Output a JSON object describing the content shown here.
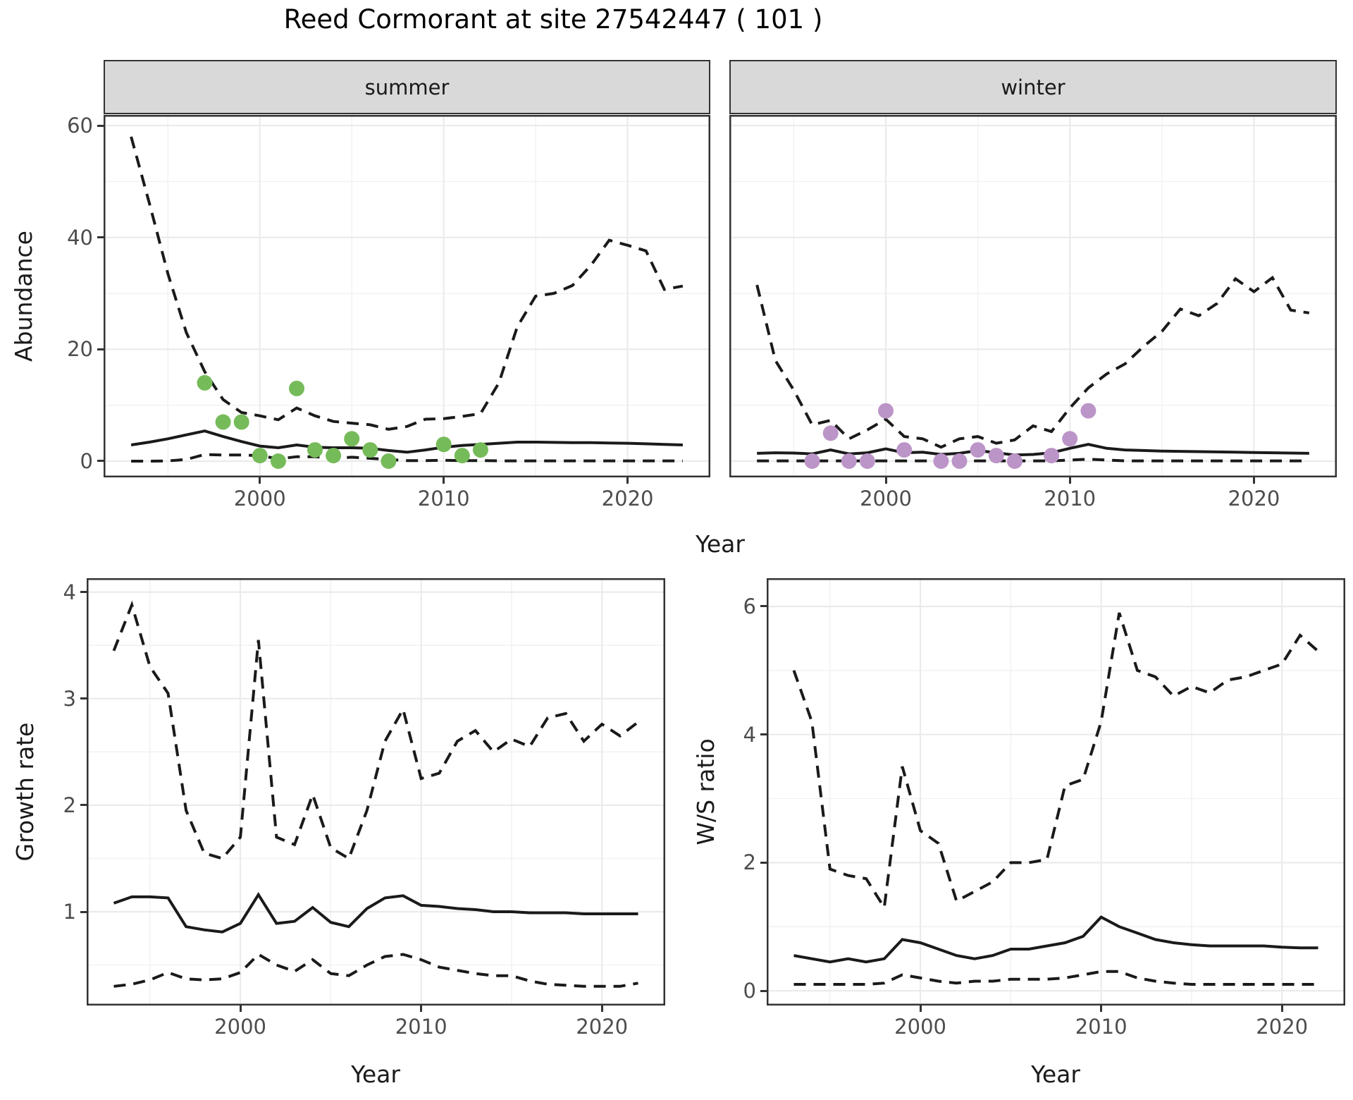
{
  "title": "Reed Cormorant at site 27542447 ( 101 )",
  "axis_titles": {
    "abundance": "Abundance",
    "year_top": "Year",
    "growth_rate": "Growth rate",
    "year_growth": "Year",
    "ws_ratio": "W/S ratio",
    "year_ws": "Year"
  },
  "colors": {
    "summer_points": "#76BB5A",
    "winter_points": "#BC95C8",
    "line": "#1A1A1A",
    "grid_major": "#EBEBEB",
    "grid_minor": "#F1F1F1",
    "strip_bg": "#D9D9D9",
    "panel_border": "#333333",
    "tick_text": "#4D4D4D"
  },
  "chart_data": [
    {
      "type": "line",
      "facet": "summer",
      "ylabel": "Abundance",
      "xlabel": "Year",
      "xlim": [
        1991.5,
        2024.5
      ],
      "ylim": [
        -2.9,
        61.9
      ],
      "x_major": [
        2000,
        2010,
        2020
      ],
      "x_minor": [
        1995,
        2005,
        2015
      ],
      "y_major": [
        0,
        20,
        40,
        60
      ],
      "y_minor": [
        10,
        30,
        50
      ],
      "point_color": "#76BB5A",
      "series": [
        {
          "name": "upper_ci",
          "style": "dashed",
          "x": [
            1993,
            1994,
            1995,
            1996,
            1997,
            1998,
            1999,
            2000,
            2001,
            2002,
            2003,
            2004,
            2005,
            2006,
            2007,
            2008,
            2009,
            2010,
            2011,
            2012,
            2013,
            2014,
            2015,
            2016,
            2017,
            2018,
            2019,
            2020,
            2021,
            2022,
            2023
          ],
          "y": [
            58,
            46,
            33.5,
            23,
            16,
            11,
            8.7,
            8.1,
            7.4,
            9.5,
            8.1,
            7.1,
            6.8,
            6.5,
            5.7,
            6.2,
            7.5,
            7.6,
            8,
            8.5,
            14,
            24,
            29.5,
            30,
            31.4,
            35,
            39.5,
            38.6,
            37.6,
            30.7,
            31.3
          ]
        },
        {
          "name": "median",
          "style": "solid",
          "x": [
            1993,
            1994,
            1995,
            1996,
            1997,
            1998,
            1999,
            2000,
            2001,
            2002,
            2003,
            2004,
            2005,
            2006,
            2007,
            2008,
            2009,
            2010,
            2011,
            2012,
            2013,
            2014,
            2015,
            2016,
            2017,
            2018,
            2019,
            2020,
            2021,
            2022,
            2023
          ],
          "y": [
            2.9,
            3.4,
            4,
            4.7,
            5.4,
            4.4,
            3.5,
            2.7,
            2.4,
            2.9,
            2.5,
            2.4,
            2.4,
            2.3,
            1.9,
            1.6,
            2,
            2.5,
            2.8,
            3,
            3.2,
            3.4,
            3.4,
            3.35,
            3.3,
            3.3,
            3.25,
            3.2,
            3.1,
            3,
            2.9
          ]
        },
        {
          "name": "lower_ci",
          "style": "dashed",
          "x": [
            1993,
            1994,
            1995,
            1996,
            1997,
            1998,
            1999,
            2000,
            2001,
            2002,
            2003,
            2004,
            2005,
            2006,
            2007,
            2008,
            2009,
            2010,
            2011,
            2012,
            2013,
            2014,
            2015,
            2016,
            2017,
            2018,
            2019,
            2020,
            2021,
            2022,
            2023
          ],
          "y": [
            0,
            0,
            0.05,
            0.3,
            1.2,
            1.1,
            1.1,
            1,
            0.4,
            0.8,
            0.8,
            0.5,
            0.7,
            0.5,
            0.3,
            0.1,
            0.1,
            0.15,
            0.1,
            0.1,
            0.05,
            0.05,
            0.05,
            0.05,
            0.05,
            0.05,
            0.05,
            0.05,
            0.05,
            0.05,
            0.05
          ]
        }
      ],
      "points": {
        "x": [
          1997,
          1998,
          1999,
          2000,
          2001,
          2002,
          2003,
          2004,
          2005,
          2006,
          2007,
          2010,
          2011,
          2012
        ],
        "y": [
          14,
          7,
          7,
          1,
          0,
          13,
          2,
          1,
          4,
          2,
          0,
          3,
          1,
          2
        ]
      }
    },
    {
      "type": "line",
      "facet": "winter",
      "ylabel": "Abundance",
      "xlabel": "Year",
      "xlim": [
        1991.5,
        2024.5
      ],
      "ylim": [
        -2.9,
        61.9
      ],
      "x_major": [
        2000,
        2010,
        2020
      ],
      "x_minor": [
        1995,
        2005,
        2015
      ],
      "y_major": [
        0,
        20,
        40,
        60
      ],
      "y_minor": [
        10,
        30,
        50
      ],
      "point_color": "#BC95C8",
      "series": [
        {
          "name": "upper_ci",
          "style": "dashed",
          "x": [
            1993,
            1994,
            1995,
            1996,
            1997,
            1998,
            1999,
            2000,
            2001,
            2002,
            2003,
            2004,
            2005,
            2006,
            2007,
            2008,
            2009,
            2010,
            2011,
            2012,
            2013,
            2014,
            2015,
            2016,
            2017,
            2018,
            2019,
            2020,
            2021,
            2022,
            2023
          ],
          "y": [
            31.5,
            18,
            12.7,
            6.5,
            7.3,
            4,
            5.6,
            7.5,
            4.4,
            4,
            2.5,
            4,
            4.4,
            3.2,
            3.8,
            6.3,
            5.3,
            9.5,
            13.1,
            15.6,
            17.4,
            20.5,
            23.2,
            27.2,
            26,
            28.2,
            32.6,
            30.3,
            32.8,
            27,
            26.5
          ]
        },
        {
          "name": "median",
          "style": "solid",
          "x": [
            1993,
            1994,
            1995,
            1996,
            1997,
            1998,
            1999,
            2000,
            2001,
            2002,
            2003,
            2004,
            2005,
            2006,
            2007,
            2008,
            2009,
            2010,
            2011,
            2012,
            2013,
            2014,
            2015,
            2016,
            2017,
            2018,
            2019,
            2020,
            2021,
            2022,
            2023
          ],
          "y": [
            1.4,
            1.5,
            1.45,
            1.3,
            2,
            1.3,
            1.5,
            2.2,
            1.5,
            1.6,
            1.2,
            1.4,
            1.9,
            1.5,
            1.1,
            1.2,
            1.5,
            2.3,
            3,
            2.3,
            2,
            1.9,
            1.8,
            1.75,
            1.7,
            1.65,
            1.6,
            1.55,
            1.5,
            1.45,
            1.4
          ]
        },
        {
          "name": "lower_ci",
          "style": "dashed",
          "x": [
            1993,
            1994,
            1995,
            1996,
            1997,
            1998,
            1999,
            2000,
            2001,
            2002,
            2003,
            2004,
            2005,
            2006,
            2007,
            2008,
            2009,
            2010,
            2011,
            2012,
            2013,
            2014,
            2015,
            2016,
            2017,
            2018,
            2019,
            2020,
            2021,
            2022,
            2023
          ],
          "y": [
            0.05,
            0.05,
            0.05,
            0.05,
            0.05,
            0.05,
            0.05,
            0.05,
            0.05,
            0.05,
            0.05,
            0.05,
            0.05,
            0.05,
            0.05,
            0.05,
            0.05,
            0.2,
            0.35,
            0.2,
            0.05,
            0.05,
            0.05,
            0.05,
            0.05,
            0.05,
            0.05,
            0.05,
            0.05,
            0.05,
            0.05
          ]
        }
      ],
      "points": {
        "x": [
          1996,
          1997,
          1998,
          1999,
          2000,
          2001,
          2003,
          2004,
          2005,
          2006,
          2007,
          2009,
          2010,
          2011
        ],
        "y": [
          0,
          5,
          0,
          0,
          9,
          2,
          0,
          0,
          2,
          1,
          0,
          1,
          4,
          9
        ]
      }
    },
    {
      "type": "line",
      "ylabel": "Growth rate",
      "xlabel": "Year",
      "xlim": [
        1991.5,
        2023.5
      ],
      "ylim": [
        0.12,
        4.13
      ],
      "x_major": [
        2000,
        2010,
        2020
      ],
      "x_minor": [
        1995,
        2005,
        2015
      ],
      "y_major": [
        1,
        2,
        3,
        4
      ],
      "y_minor": [
        0.5,
        1.5,
        2.5,
        3.5
      ],
      "series": [
        {
          "name": "upper_ci",
          "style": "dashed",
          "x": [
            1993,
            1994,
            1995,
            1996,
            1997,
            1998,
            1999,
            2000,
            2001,
            2002,
            2003,
            2004,
            2005,
            2006,
            2007,
            2008,
            2009,
            2010,
            2011,
            2012,
            2013,
            2014,
            2015,
            2016,
            2017,
            2018,
            2019,
            2020,
            2021,
            2022
          ],
          "y": [
            3.45,
            3.88,
            3.3,
            3.05,
            1.95,
            1.55,
            1.5,
            1.7,
            3.55,
            1.7,
            1.63,
            2.1,
            1.6,
            1.5,
            1.95,
            2.6,
            2.9,
            2.25,
            2.3,
            2.6,
            2.7,
            2.5,
            2.62,
            2.55,
            2.82,
            2.86,
            2.6,
            2.76,
            2.65,
            2.78
          ]
        },
        {
          "name": "median",
          "style": "solid",
          "x": [
            1993,
            1994,
            1995,
            1996,
            1997,
            1998,
            1999,
            2000,
            2001,
            2002,
            2003,
            2004,
            2005,
            2006,
            2007,
            2008,
            2009,
            2010,
            2011,
            2012,
            2013,
            2014,
            2015,
            2016,
            2017,
            2018,
            2019,
            2020,
            2021,
            2022
          ],
          "y": [
            1.08,
            1.14,
            1.14,
            1.13,
            0.86,
            0.83,
            0.81,
            0.89,
            1.16,
            0.89,
            0.91,
            1.04,
            0.9,
            0.86,
            1.03,
            1.13,
            1.15,
            1.06,
            1.05,
            1.03,
            1.02,
            1,
            1,
            0.99,
            0.99,
            0.99,
            0.98,
            0.98,
            0.98,
            0.98
          ]
        },
        {
          "name": "lower_ci",
          "style": "dashed",
          "x": [
            1993,
            1994,
            1995,
            1996,
            1997,
            1998,
            1999,
            2000,
            2001,
            2002,
            2003,
            2004,
            2005,
            2006,
            2007,
            2008,
            2009,
            2010,
            2011,
            2012,
            2013,
            2014,
            2015,
            2016,
            2017,
            2018,
            2019,
            2020,
            2021,
            2022
          ],
          "y": [
            0.3,
            0.32,
            0.36,
            0.43,
            0.37,
            0.36,
            0.37,
            0.43,
            0.6,
            0.5,
            0.44,
            0.55,
            0.42,
            0.4,
            0.5,
            0.58,
            0.6,
            0.55,
            0.48,
            0.45,
            0.42,
            0.4,
            0.4,
            0.35,
            0.32,
            0.31,
            0.3,
            0.3,
            0.3,
            0.33
          ]
        }
      ]
    },
    {
      "type": "line",
      "ylabel": "W/S ratio",
      "xlabel": "Year",
      "xlim": [
        1991.5,
        2023.5
      ],
      "ylim": [
        -0.23,
        6.44
      ],
      "x_major": [
        2000,
        2010,
        2020
      ],
      "x_minor": [
        1995,
        2005,
        2015
      ],
      "y_major": [
        0,
        2,
        4,
        6
      ],
      "y_minor": [
        1,
        3,
        5
      ],
      "series": [
        {
          "name": "upper_ci",
          "style": "dashed",
          "x": [
            1993,
            1994,
            1995,
            1996,
            1997,
            1998,
            1999,
            2000,
            2001,
            2002,
            2003,
            2004,
            2005,
            2006,
            2007,
            2008,
            2009,
            2010,
            2011,
            2012,
            2013,
            2014,
            2015,
            2016,
            2017,
            2018,
            2019,
            2020,
            2021,
            2022
          ],
          "y": [
            5,
            4.2,
            1.9,
            1.8,
            1.75,
            1.3,
            3.5,
            2.5,
            2.3,
            1.4,
            1.55,
            1.7,
            2,
            2,
            2.05,
            3.2,
            3.3,
            4.2,
            5.9,
            5,
            4.9,
            4.6,
            4.75,
            4.65,
            4.85,
            4.9,
            5,
            5.1,
            5.55,
            5.3
          ]
        },
        {
          "name": "median",
          "style": "solid",
          "x": [
            1993,
            1994,
            1995,
            1996,
            1997,
            1998,
            1999,
            2000,
            2001,
            2002,
            2003,
            2004,
            2005,
            2006,
            2007,
            2008,
            2009,
            2010,
            2011,
            2012,
            2013,
            2014,
            2015,
            2016,
            2017,
            2018,
            2019,
            2020,
            2021,
            2022
          ],
          "y": [
            0.55,
            0.5,
            0.45,
            0.5,
            0.45,
            0.5,
            0.8,
            0.75,
            0.65,
            0.55,
            0.5,
            0.55,
            0.65,
            0.65,
            0.7,
            0.75,
            0.85,
            1.15,
            1,
            0.9,
            0.8,
            0.75,
            0.72,
            0.7,
            0.7,
            0.7,
            0.7,
            0.68,
            0.67,
            0.67
          ]
        },
        {
          "name": "lower_ci",
          "style": "dashed",
          "x": [
            1993,
            1994,
            1995,
            1996,
            1997,
            1998,
            1999,
            2000,
            2001,
            2002,
            2003,
            2004,
            2005,
            2006,
            2007,
            2008,
            2009,
            2010,
            2011,
            2012,
            2013,
            2014,
            2015,
            2016,
            2017,
            2018,
            2019,
            2020,
            2021,
            2022
          ],
          "y": [
            0.1,
            0.1,
            0.1,
            0.1,
            0.1,
            0.12,
            0.25,
            0.2,
            0.15,
            0.12,
            0.15,
            0.15,
            0.18,
            0.18,
            0.18,
            0.2,
            0.25,
            0.3,
            0.3,
            0.2,
            0.15,
            0.12,
            0.1,
            0.1,
            0.1,
            0.1,
            0.1,
            0.1,
            0.1,
            0.1
          ]
        }
      ]
    }
  ]
}
